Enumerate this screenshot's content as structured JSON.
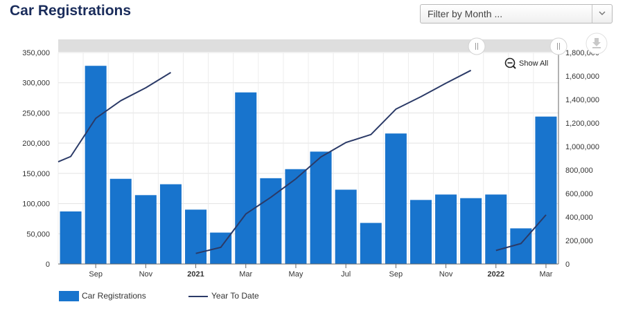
{
  "header": {
    "title": "Car Registrations"
  },
  "filter": {
    "placeholder": "Filter by Month ...",
    "arrow_icon": "chevron-down-icon"
  },
  "toolbar": {
    "show_all_label": "Show All",
    "zoom_icon": "zoom-out-icon",
    "download_icon": "download-icon"
  },
  "legend": {
    "bars_label": "Car Registrations",
    "line_label": "Year To Date"
  },
  "colors": {
    "bar": "#1874cd",
    "line": "#2b3a67",
    "grid": "#e3e3e3"
  },
  "chart_data": {
    "type": "bar",
    "categories": [
      "2020-08",
      "2020-09",
      "2020-10",
      "2020-11",
      "2020-12",
      "2021-01",
      "2021-02",
      "2021-03",
      "2021-04",
      "2021-05",
      "2021-06",
      "2021-07",
      "2021-08",
      "2021-09",
      "2021-10",
      "2021-11",
      "2021-12",
      "2022-01",
      "2022-02",
      "2022-03"
    ],
    "x_tick_labels": [
      "Sep",
      "Nov",
      "2021",
      "Mar",
      "May",
      "Jul",
      "Sep",
      "Nov",
      "2022",
      "Mar"
    ],
    "x_tick_categories": [
      "2020-09",
      "2020-11",
      "2021-01",
      "2021-03",
      "2021-05",
      "2021-07",
      "2021-09",
      "2021-11",
      "2022-01",
      "2022-03"
    ],
    "x_tick_bold": [
      "2021",
      "2022"
    ],
    "series": [
      {
        "name": "Car Registrations",
        "type": "bar",
        "axis": "left",
        "values": [
          87000,
          328000,
          141000,
          114000,
          132000,
          90000,
          52000,
          284000,
          142000,
          157000,
          186000,
          123000,
          68000,
          216000,
          106000,
          115000,
          109000,
          115000,
          59000,
          244000
        ]
      },
      {
        "name": "Year To Date",
        "type": "line",
        "axis": "right",
        "segments": [
          {
            "x": [
              "2020-07",
              "2020-08",
              "2020-09",
              "2020-10",
              "2020-11",
              "2020-12"
            ],
            "y": [
              870000,
              915000,
              1240000,
              1390000,
              1500000,
              1630000
            ]
          },
          {
            "x": [
              "2021-01",
              "2021-02",
              "2021-03",
              "2021-04",
              "2021-05",
              "2021-06",
              "2021-07",
              "2021-08",
              "2021-09",
              "2021-10",
              "2021-11",
              "2021-12"
            ],
            "y": [
              90000,
              142000,
              426000,
              568000,
              725000,
              911000,
              1034000,
              1102000,
              1318000,
              1424000,
              1539000,
              1648000
            ]
          },
          {
            "x": [
              "2022-01",
              "2022-02",
              "2022-03"
            ],
            "y": [
              115000,
              174000,
              418000
            ]
          }
        ]
      }
    ],
    "y_left": {
      "ylim": [
        0,
        350000
      ],
      "ticks": [
        0,
        50000,
        100000,
        150000,
        200000,
        250000,
        300000,
        350000
      ],
      "tick_labels": [
        "0",
        "50,000",
        "100,000",
        "150,000",
        "200,000",
        "250,000",
        "300,000",
        "350,000"
      ]
    },
    "y_right": {
      "ylim": [
        0,
        1800000
      ],
      "ticks": [
        0,
        200000,
        400000,
        600000,
        800000,
        1000000,
        1200000,
        1400000,
        1600000,
        1800000
      ],
      "tick_labels": [
        "0",
        "200,000",
        "400,000",
        "600,000",
        "800,000",
        "1,000,000",
        "1,200,000",
        "1,400,000",
        "1,600,000",
        "1,800,000"
      ]
    },
    "grid": true,
    "legend_position": "bottom-left"
  }
}
